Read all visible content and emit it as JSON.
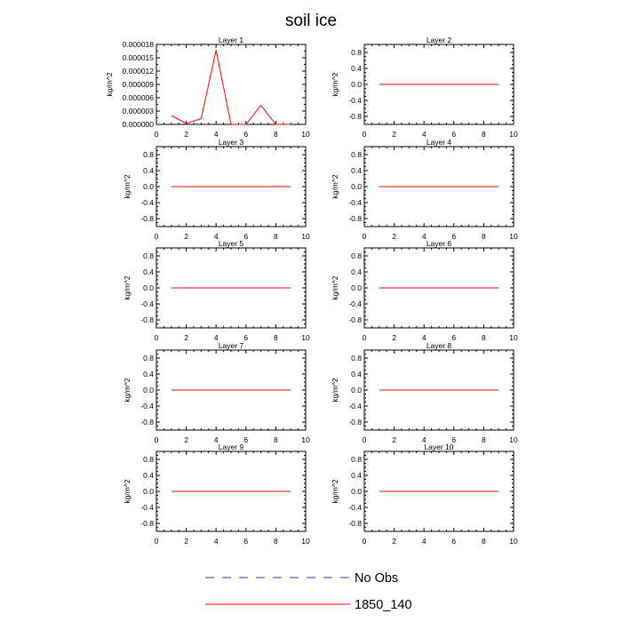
{
  "title": "soil ice",
  "colors": {
    "series": "#ff0000",
    "obs": "#3333cc",
    "axis": "#000000"
  },
  "legend": [
    {
      "label": "No Obs",
      "style": "dashed",
      "color": "#3333cc"
    },
    {
      "label": "1850_140",
      "style": "solid",
      "color": "#ff0000"
    }
  ],
  "chart_data": [
    {
      "type": "line",
      "title": "Layer 1",
      "ylabel": "kg/m^2",
      "xlim": [
        0,
        10
      ],
      "ylim": [
        0,
        1.8e-05
      ],
      "xticks": [
        0,
        2,
        4,
        6,
        8,
        10
      ],
      "yticks": [
        0,
        3e-06,
        6e-06,
        9e-06,
        1.2e-05,
        1.5e-05,
        1.8e-05
      ],
      "yticklabels": [
        "0.000000",
        "0.000003",
        "0.000006",
        "0.000009",
        "0.000012",
        "0.000015",
        "0.000018"
      ],
      "series": [
        {
          "name": "1850_140",
          "x": [
            1,
            2,
            3,
            4,
            5,
            6,
            7,
            8,
            9
          ],
          "y": [
            2e-06,
            2e-07,
            1.3e-06,
            1.67e-05,
            0,
            0,
            4.3e-06,
            0,
            0
          ]
        }
      ]
    },
    {
      "type": "line",
      "title": "Layer 2",
      "ylabel": "kg/m^2",
      "xlim": [
        0,
        10
      ],
      "ylim": [
        -1,
        1
      ],
      "xticks": [
        0,
        2,
        4,
        6,
        8,
        10
      ],
      "yticks": [
        0.8,
        0.4,
        0,
        -0.4,
        -0.8
      ],
      "yticklabels": [
        "0.8",
        "0.4",
        "0.0",
        "-0.4",
        "-0.8"
      ],
      "series": [
        {
          "name": "1850_140",
          "x": [
            1,
            2,
            3,
            4,
            5,
            6,
            7,
            8,
            9
          ],
          "y": [
            0,
            0,
            0,
            0,
            0,
            0,
            0,
            0,
            0
          ]
        }
      ]
    },
    {
      "type": "line",
      "title": "Layer 3",
      "ylabel": "kg/m^2",
      "xlim": [
        0,
        10
      ],
      "ylim": [
        -1,
        1
      ],
      "xticks": [
        0,
        2,
        4,
        6,
        8,
        10
      ],
      "yticks": [
        0.8,
        0.4,
        0,
        -0.4,
        -0.8
      ],
      "yticklabels": [
        "0.8",
        "0.4",
        "0.0",
        "-0.4",
        "-0.8"
      ],
      "series": [
        {
          "name": "1850_140",
          "x": [
            1,
            2,
            3,
            4,
            5,
            6,
            7,
            8,
            9
          ],
          "y": [
            0,
            0,
            0,
            0,
            0,
            0,
            0,
            0,
            0
          ]
        }
      ]
    },
    {
      "type": "line",
      "title": "Layer 4",
      "ylabel": "kg/m^2",
      "xlim": [
        0,
        10
      ],
      "ylim": [
        -1,
        1
      ],
      "xticks": [
        0,
        2,
        4,
        6,
        8,
        10
      ],
      "yticks": [
        0.8,
        0.4,
        0,
        -0.4,
        -0.8
      ],
      "yticklabels": [
        "0.8",
        "0.4",
        "0.0",
        "-0.4",
        "-0.8"
      ],
      "series": [
        {
          "name": "1850_140",
          "x": [
            1,
            2,
            3,
            4,
            5,
            6,
            7,
            8,
            9
          ],
          "y": [
            0,
            0,
            0,
            0,
            0,
            0,
            0,
            0,
            0
          ]
        }
      ]
    },
    {
      "type": "line",
      "title": "Layer 5",
      "ylabel": "kg/m^2",
      "xlim": [
        0,
        10
      ],
      "ylim": [
        -1,
        1
      ],
      "xticks": [
        0,
        2,
        4,
        6,
        8,
        10
      ],
      "yticks": [
        0.8,
        0.4,
        0,
        -0.4,
        -0.8
      ],
      "yticklabels": [
        "0.8",
        "0.4",
        "0.0",
        "-0.4",
        "-0.8"
      ],
      "series": [
        {
          "name": "1850_140",
          "x": [
            1,
            2,
            3,
            4,
            5,
            6,
            7,
            8,
            9
          ],
          "y": [
            0,
            0,
            0,
            0,
            0,
            0,
            0,
            0,
            0
          ]
        }
      ]
    },
    {
      "type": "line",
      "title": "Layer 6",
      "ylabel": "kg/m^2",
      "xlim": [
        0,
        10
      ],
      "ylim": [
        -1,
        1
      ],
      "xticks": [
        0,
        2,
        4,
        6,
        8,
        10
      ],
      "yticks": [
        0.8,
        0.4,
        0,
        -0.4,
        -0.8
      ],
      "yticklabels": [
        "0.8",
        "0.4",
        "0.0",
        "-0.4",
        "-0.8"
      ],
      "series": [
        {
          "name": "1850_140",
          "x": [
            1,
            2,
            3,
            4,
            5,
            6,
            7,
            8,
            9
          ],
          "y": [
            0,
            0,
            0,
            0,
            0,
            0,
            0,
            0,
            0
          ]
        }
      ]
    },
    {
      "type": "line",
      "title": "Layer 7",
      "ylabel": "kg/m^2",
      "xlim": [
        0,
        10
      ],
      "ylim": [
        -1,
        1
      ],
      "xticks": [
        0,
        2,
        4,
        6,
        8,
        10
      ],
      "yticks": [
        0.8,
        0.4,
        0,
        -0.4,
        -0.8
      ],
      "yticklabels": [
        "0.8",
        "0.4",
        "0.0",
        "-0.4",
        "-0.8"
      ],
      "series": [
        {
          "name": "1850_140",
          "x": [
            1,
            2,
            3,
            4,
            5,
            6,
            7,
            8,
            9
          ],
          "y": [
            0,
            0,
            0,
            0,
            0,
            0,
            0,
            0,
            0
          ]
        }
      ]
    },
    {
      "type": "line",
      "title": "Layer 8",
      "ylabel": "kg/m^2",
      "xlim": [
        0,
        10
      ],
      "ylim": [
        -1,
        1
      ],
      "xticks": [
        0,
        2,
        4,
        6,
        8,
        10
      ],
      "yticks": [
        0.8,
        0.4,
        0,
        -0.4,
        -0.8
      ],
      "yticklabels": [
        "0.8",
        "0.4",
        "0.0",
        "-0.4",
        "-0.8"
      ],
      "series": [
        {
          "name": "1850_140",
          "x": [
            1,
            2,
            3,
            4,
            5,
            6,
            7,
            8,
            9
          ],
          "y": [
            0,
            0,
            0,
            0,
            0,
            0,
            0,
            0,
            0
          ]
        }
      ]
    },
    {
      "type": "line",
      "title": "Layer 9",
      "ylabel": "kg/m^2",
      "xlim": [
        0,
        10
      ],
      "ylim": [
        -1,
        1
      ],
      "xticks": [
        0,
        2,
        4,
        6,
        8,
        10
      ],
      "yticks": [
        0.8,
        0.4,
        0,
        -0.4,
        -0.8
      ],
      "yticklabels": [
        "0.8",
        "0.4",
        "0.0",
        "-0.4",
        "-0.8"
      ],
      "series": [
        {
          "name": "1850_140",
          "x": [
            1,
            2,
            3,
            4,
            5,
            6,
            7,
            8,
            9
          ],
          "y": [
            0,
            0,
            0,
            0,
            0,
            0,
            0,
            0,
            0
          ]
        }
      ]
    },
    {
      "type": "line",
      "title": "Layer 10",
      "ylabel": "kg/m^2",
      "xlim": [
        0,
        10
      ],
      "ylim": [
        -1,
        1
      ],
      "xticks": [
        0,
        2,
        4,
        6,
        8,
        10
      ],
      "yticks": [
        0.8,
        0.4,
        0,
        -0.4,
        -0.8
      ],
      "yticklabels": [
        "0.8",
        "0.4",
        "0.0",
        "-0.4",
        "-0.8"
      ],
      "series": [
        {
          "name": "1850_140",
          "x": [
            1,
            2,
            3,
            4,
            5,
            6,
            7,
            8,
            9
          ],
          "y": [
            0,
            0,
            0,
            0,
            0,
            0,
            0,
            0,
            0
          ]
        }
      ]
    }
  ]
}
